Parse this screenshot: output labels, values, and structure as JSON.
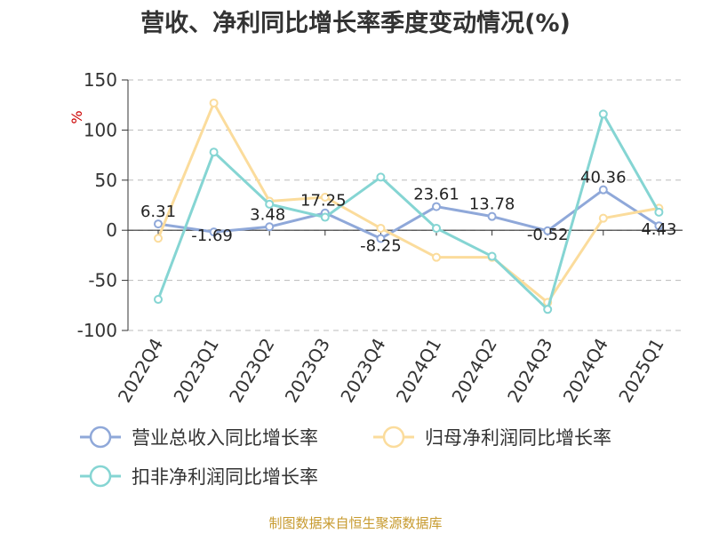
{
  "title": "营收、净利同比增长率季度变动情况(%)",
  "footer": "制图数据来自恒生聚源数据库",
  "chart_data": {
    "type": "line",
    "title": "营收、净利同比增长率季度变动情况(%)",
    "ylabel": "%",
    "xlabel": "",
    "ylim": [
      -100,
      150
    ],
    "yticks": [
      150,
      100,
      50,
      0,
      -50,
      -100
    ],
    "grid": true,
    "legend_position": "bottom",
    "categories": [
      "2022Q4",
      "2023Q1",
      "2023Q2",
      "2023Q3",
      "2023Q4",
      "2024Q1",
      "2024Q2",
      "2024Q3",
      "2024Q4",
      "2025Q1"
    ],
    "series": [
      {
        "name": "营业总收入同比增长率",
        "color": "#8fa8d9",
        "values": [
          6.31,
          -1.69,
          3.48,
          17.25,
          -8.25,
          23.61,
          13.78,
          -0.52,
          40.36,
          4.43
        ],
        "labels": [
          "6.31",
          "-1.69",
          "3.48",
          "17.25",
          "-8.25",
          "23.61",
          "13.78",
          "-0.52",
          "40.36",
          "4.43"
        ]
      },
      {
        "name": "归母净利润同比增长率",
        "color": "#fbdc9c",
        "values": [
          -8,
          127,
          29,
          33,
          2,
          -27,
          -27,
          -72,
          12,
          22
        ]
      },
      {
        "name": "扣非净利润同比增长率",
        "color": "#85d5d3",
        "values": [
          -69,
          78,
          26,
          13,
          53,
          2,
          -26,
          -79,
          116,
          18
        ]
      }
    ]
  }
}
